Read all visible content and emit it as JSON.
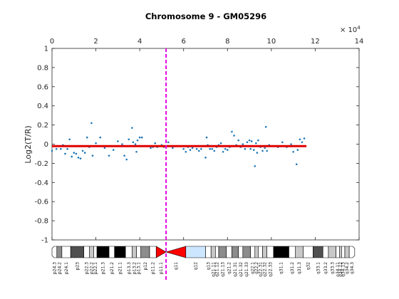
{
  "chart_data": {
    "type": "scatter",
    "title": "Chromosome 9 - GM05296",
    "xlabel": "",
    "ylabel": "Log2(T/R)",
    "x_multiplier_label": "× 10",
    "x_multiplier_exponent": "4",
    "xlim": [
      0,
      14
    ],
    "ylim": [
      -1,
      1
    ],
    "x_ticks": [
      "0",
      "2",
      "4",
      "6",
      "8",
      "10",
      "12",
      "14"
    ],
    "y_ticks": [
      "1",
      "0.8",
      "0.6",
      "0.4",
      "0.2",
      "0",
      "-0.2",
      "-0.4",
      "-0.6",
      "-0.8",
      "-1"
    ],
    "grid": false,
    "centromere_x": 5.2,
    "segments": [
      {
        "x_start": 0.0,
        "x_end": 11.6,
        "y": -0.02
      }
    ],
    "points": [
      [
        0.0,
        -0.07
      ],
      [
        0.1,
        -0.02
      ],
      [
        0.2,
        -0.05
      ],
      [
        0.3,
        -0.02
      ],
      [
        0.4,
        -0.05
      ],
      [
        0.5,
        -0.01
      ],
      [
        0.6,
        -0.1
      ],
      [
        0.7,
        -0.05
      ],
      [
        0.8,
        0.05
      ],
      [
        0.9,
        -0.13
      ],
      [
        1.0,
        -0.09
      ],
      [
        1.1,
        -0.1
      ],
      [
        1.2,
        -0.14
      ],
      [
        1.3,
        -0.15
      ],
      [
        1.4,
        -0.07
      ],
      [
        1.5,
        -0.09
      ],
      [
        1.6,
        0.07
      ],
      [
        1.7,
        -0.03
      ],
      [
        1.8,
        0.22
      ],
      [
        1.85,
        -0.12
      ],
      [
        2.0,
        0.01
      ],
      [
        2.2,
        0.07
      ],
      [
        2.4,
        -0.04
      ],
      [
        2.6,
        -0.12
      ],
      [
        2.8,
        -0.06
      ],
      [
        3.0,
        0.03
      ],
      [
        3.2,
        0.0
      ],
      [
        3.3,
        -0.12
      ],
      [
        3.4,
        -0.16
      ],
      [
        3.5,
        0.05
      ],
      [
        3.6,
        -0.02
      ],
      [
        3.65,
        0.17
      ],
      [
        3.7,
        0.02
      ],
      [
        3.8,
        0.0
      ],
      [
        3.85,
        -0.08
      ],
      [
        3.9,
        0.04
      ],
      [
        4.0,
        0.07
      ],
      [
        4.1,
        0.07
      ],
      [
        4.5,
        -0.04
      ],
      [
        4.6,
        -0.03
      ],
      [
        4.7,
        0.01
      ],
      [
        4.8,
        -0.03
      ],
      [
        5.0,
        -0.01
      ],
      [
        5.1,
        -0.03
      ],
      [
        5.3,
        0.02
      ],
      [
        5.5,
        -0.04
      ],
      [
        5.7,
        -0.02
      ],
      [
        6.0,
        -0.05
      ],
      [
        6.1,
        -0.08
      ],
      [
        6.2,
        -0.03
      ],
      [
        6.3,
        -0.06
      ],
      [
        6.4,
        -0.04
      ],
      [
        6.5,
        -0.02
      ],
      [
        6.6,
        -0.05
      ],
      [
        6.7,
        -0.07
      ],
      [
        6.8,
        -0.05
      ],
      [
        7.0,
        -0.14
      ],
      [
        7.05,
        0.07
      ],
      [
        7.1,
        -0.01
      ],
      [
        7.2,
        -0.05
      ],
      [
        7.3,
        -0.05
      ],
      [
        7.4,
        -0.07
      ],
      [
        7.5,
        -0.03
      ],
      [
        7.6,
        -0.01
      ],
      [
        7.7,
        0.01
      ],
      [
        7.8,
        -0.08
      ],
      [
        7.9,
        -0.05
      ],
      [
        8.0,
        -0.06
      ],
      [
        8.1,
        -0.03
      ],
      [
        8.2,
        0.13
      ],
      [
        8.3,
        0.09
      ],
      [
        8.4,
        -0.01
      ],
      [
        8.5,
        0.04
      ],
      [
        8.6,
        -0.03
      ],
      [
        8.7,
        0.0
      ],
      [
        8.8,
        -0.05
      ],
      [
        8.9,
        0.02
      ],
      [
        9.0,
        0.04
      ],
      [
        9.05,
        -0.05
      ],
      [
        9.1,
        0.03
      ],
      [
        9.2,
        -0.06
      ],
      [
        9.25,
        -0.23
      ],
      [
        9.3,
        0.01
      ],
      [
        9.35,
        -0.09
      ],
      [
        9.4,
        0.04
      ],
      [
        9.5,
        -0.03
      ],
      [
        9.6,
        -0.07
      ],
      [
        9.7,
        -0.04
      ],
      [
        9.75,
        0.18
      ],
      [
        9.8,
        -0.07
      ],
      [
        9.9,
        -0.01
      ],
      [
        10.3,
        -0.03
      ],
      [
        10.5,
        0.02
      ],
      [
        10.7,
        -0.03
      ],
      [
        10.9,
        0.0
      ],
      [
        11.0,
        -0.08
      ],
      [
        11.1,
        -0.02
      ],
      [
        11.15,
        -0.21
      ],
      [
        11.2,
        -0.06
      ],
      [
        11.3,
        0.05
      ],
      [
        11.4,
        0.02
      ],
      [
        11.5,
        0.06
      ]
    ],
    "ideogram": {
      "bands": [
        {
          "label": "p24.3",
          "start": 0.0,
          "end": 0.22,
          "stain": "gneg"
        },
        {
          "label": "p24.2",
          "start": 0.22,
          "end": 0.45,
          "stain": "gpos50"
        },
        {
          "label": "p24.1",
          "start": 0.45,
          "end": 0.85,
          "stain": "gneg"
        },
        {
          "label": "p23",
          "start": 0.85,
          "end": 1.45,
          "stain": "gpos75"
        },
        {
          "label": "p22.3",
          "start": 1.45,
          "end": 1.7,
          "stain": "gneg"
        },
        {
          "label": "p22.2",
          "start": 1.7,
          "end": 1.9,
          "stain": "gpos25"
        },
        {
          "label": "p22.1",
          "start": 1.9,
          "end": 2.05,
          "stain": "gneg"
        },
        {
          "label": "p21.3",
          "start": 2.05,
          "end": 2.6,
          "stain": "gpos100"
        },
        {
          "label": "p21.2",
          "start": 2.6,
          "end": 2.85,
          "stain": "gneg"
        },
        {
          "label": "p21.1",
          "start": 2.85,
          "end": 3.35,
          "stain": "gpos100"
        },
        {
          "label": "p13.3",
          "start": 3.35,
          "end": 3.65,
          "stain": "gneg"
        },
        {
          "label": "p13.2",
          "start": 3.65,
          "end": 3.85,
          "stain": "gpos25"
        },
        {
          "label": "p13.1",
          "start": 3.85,
          "end": 4.05,
          "stain": "gneg"
        },
        {
          "label": "p12",
          "start": 4.05,
          "end": 4.45,
          "stain": "gpos50"
        },
        {
          "label": "p11.2",
          "start": 4.45,
          "end": 4.75,
          "stain": "gneg"
        },
        {
          "label": "p11.1",
          "start": 4.75,
          "end": 5.2,
          "stain": "acen"
        },
        {
          "label": "q11",
          "start": 5.2,
          "end": 6.1,
          "stain": "acen"
        },
        {
          "label": "q12",
          "start": 6.1,
          "end": 7.0,
          "stain": "gvar"
        },
        {
          "label": "q13",
          "start": 7.0,
          "end": 7.25,
          "stain": "gneg"
        },
        {
          "label": "q21.11",
          "start": 7.25,
          "end": 7.45,
          "stain": "gpos25"
        },
        {
          "label": "q21.12",
          "start": 7.45,
          "end": 7.6,
          "stain": "gneg"
        },
        {
          "label": "q21.13",
          "start": 7.6,
          "end": 7.95,
          "stain": "gpos50"
        },
        {
          "label": "q21.2",
          "start": 7.95,
          "end": 8.2,
          "stain": "gneg"
        },
        {
          "label": "q21.31",
          "start": 8.2,
          "end": 8.5,
          "stain": "gpos50"
        },
        {
          "label": "q21.32",
          "start": 8.5,
          "end": 8.7,
          "stain": "gneg"
        },
        {
          "label": "q21.33",
          "start": 8.7,
          "end": 9.05,
          "stain": "gpos50"
        },
        {
          "label": "q22.1",
          "start": 9.05,
          "end": 9.25,
          "stain": "gneg"
        },
        {
          "label": "q22.2",
          "start": 9.25,
          "end": 9.4,
          "stain": "gpos25"
        },
        {
          "label": "q22.31",
          "start": 9.4,
          "end": 9.6,
          "stain": "gneg"
        },
        {
          "label": "q22.32",
          "start": 9.6,
          "end": 9.8,
          "stain": "gpos25"
        },
        {
          "label": "q22.33",
          "start": 9.8,
          "end": 10.1,
          "stain": "gneg"
        },
        {
          "label": "q31.1",
          "start": 10.1,
          "end": 10.8,
          "stain": "gpos100"
        },
        {
          "label": "q31.2",
          "start": 10.8,
          "end": 11.1,
          "stain": "gneg"
        },
        {
          "label": "q31.3",
          "start": 11.1,
          "end": 11.45,
          "stain": "gpos25"
        },
        {
          "label": "q32",
          "start": 11.45,
          "end": 11.9,
          "stain": "gneg"
        },
        {
          "label": "q33.1",
          "start": 11.9,
          "end": 12.35,
          "stain": "gpos75"
        },
        {
          "label": "q33.2",
          "start": 12.35,
          "end": 12.6,
          "stain": "gneg"
        },
        {
          "label": "q33.3",
          "start": 12.6,
          "end": 12.95,
          "stain": "gpos25"
        },
        {
          "label": "q34.11",
          "start": 12.95,
          "end": 13.1,
          "stain": "gneg"
        },
        {
          "label": "q34.12",
          "start": 13.1,
          "end": 13.2,
          "stain": "gpos25"
        },
        {
          "label": "q34.13",
          "start": 13.2,
          "end": 13.35,
          "stain": "gneg"
        },
        {
          "label": "q34.2",
          "start": 13.35,
          "end": 13.55,
          "stain": "gpos25"
        },
        {
          "label": "q34.3",
          "start": 13.55,
          "end": 13.8,
          "stain": "gneg"
        }
      ]
    },
    "colors": {
      "points": "#1f77b4",
      "segment": "#e00000",
      "centromere_line": "#e600e6",
      "axis": "#262626",
      "gneg": "#ffffff",
      "gpos25": "#c8c8c8",
      "gpos50": "#8c8c8c",
      "gpos75": "#505050",
      "gpos100": "#000000",
      "acen": "#ff0000",
      "gvar": "#cde6ff"
    }
  }
}
